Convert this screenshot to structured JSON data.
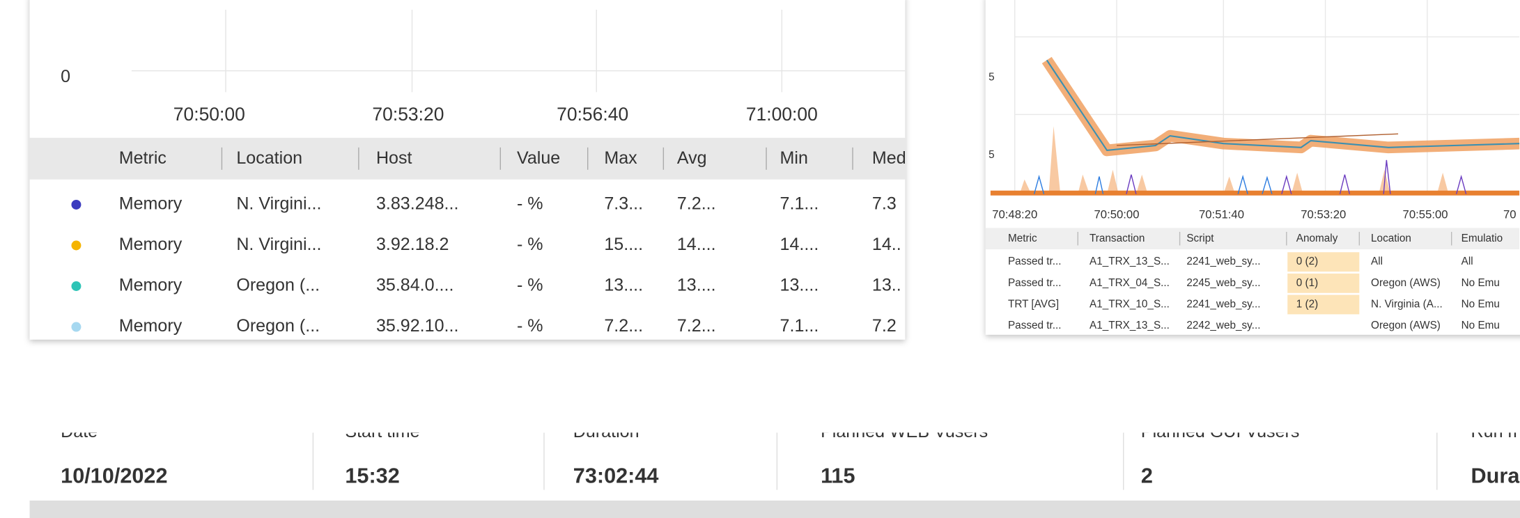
{
  "left_panel": {
    "y_tick": "0",
    "x_ticks": [
      "70:50:00",
      "70:53:20",
      "70:56:40",
      "71:00:00"
    ],
    "table": {
      "headers": [
        "Metric",
        "Location",
        "Host",
        "Value",
        "Max",
        "Avg",
        "Min",
        "Med"
      ],
      "rows": [
        [
          "Memory",
          "N. Virgini...",
          "3.83.248...",
          "- %",
          "7.3...",
          "7.2...",
          "7.1...",
          "7.3"
        ],
        [
          "Memory",
          "N. Virgini...",
          "3.92.18.2",
          "- %",
          "15....",
          "14....",
          "14....",
          "14.."
        ],
        [
          "Memory",
          "Oregon (...",
          "35.84.0....",
          "- %",
          "13....",
          "13....",
          "13....",
          "13.."
        ],
        [
          "Memory",
          "Oregon (...",
          "35.92.10...",
          "- %",
          "7.2...",
          "7.2...",
          "7.1...",
          "7.2"
        ]
      ]
    }
  },
  "right_panel": {
    "y_ticks": [
      "5",
      "5"
    ],
    "x_ticks": [
      "70:48:20",
      "70:50:00",
      "70:51:40",
      "70:53:20",
      "70:55:00",
      "70"
    ],
    "table": {
      "headers": [
        "Metric",
        "Transaction",
        "Script",
        "Anomaly",
        "Location",
        "Emulatio"
      ],
      "rows": [
        {
          "metric": "Passed tr...",
          "transaction": "A1_TRX_13_S...",
          "script": "2241_web_sy...",
          "anomaly": "0 (2)",
          "location": "All",
          "emulation": "All"
        },
        {
          "metric": "Passed tr...",
          "transaction": "A1_TRX_04_S...",
          "script": "2245_web_sy...",
          "anomaly": "0 (1)",
          "location": "Oregon (AWS)",
          "emulation": "No Emu"
        },
        {
          "metric": "TRT [AVG]",
          "transaction": "A1_TRX_10_S...",
          "script": "2241_web_sy...",
          "anomaly": "1 (2)",
          "location": "N. Virginia (A...",
          "emulation": "No Emu"
        },
        {
          "metric": "Passed tr...",
          "transaction": "A1_TRX_13_S...",
          "script": "2242_web_sy...",
          "location": "Oregon (AWS)",
          "emulation": "No Emu"
        }
      ]
    }
  },
  "summary": [
    {
      "label": "Date",
      "value": "10/10/2022"
    },
    {
      "label": "Start time",
      "value": "15:32"
    },
    {
      "label": "Duration",
      "value": "73:02:44"
    },
    {
      "label": "Planned WEB Vusers",
      "value": "115"
    },
    {
      "label": "Planned GUI Vusers",
      "value": "2"
    },
    {
      "label": "Run m",
      "value": "Dura"
    }
  ]
}
